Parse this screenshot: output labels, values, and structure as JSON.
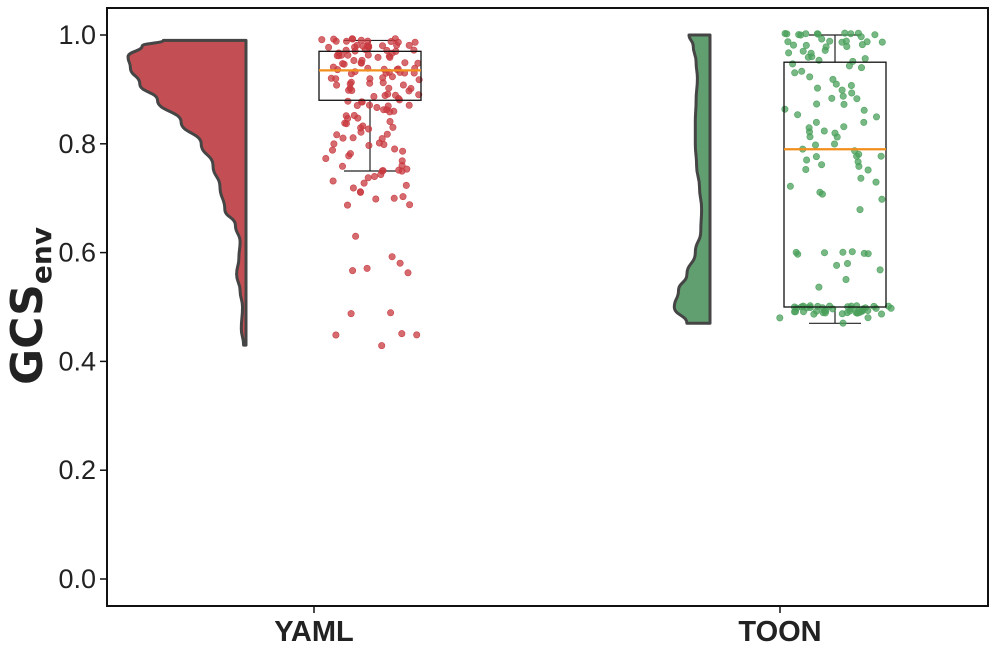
{
  "chart_data": {
    "type": "raincloud",
    "ylabel": "GCS",
    "ylabel_subscript": "env",
    "ylim": [
      -0.05,
      1.05
    ],
    "yticks": [
      "0.0",
      "0.2",
      "0.4",
      "0.6",
      "0.8",
      "1.0"
    ],
    "grid": false,
    "legend": "none",
    "categories": [
      "YAML",
      "TOON"
    ],
    "series": [
      {
        "category": "YAML",
        "color": "#c8393f",
        "violin_color": "#c0464b",
        "min": 0.43,
        "q1": 0.88,
        "median": 0.935,
        "q3": 0.97,
        "whisker_low": 0.75,
        "whisker_high": 0.99,
        "max": 0.99,
        "density": [
          [
            0.43,
            0.02
          ],
          [
            0.46,
            0.04
          ],
          [
            0.5,
            0.03
          ],
          [
            0.53,
            0.05
          ],
          [
            0.56,
            0.08
          ],
          [
            0.59,
            0.06
          ],
          [
            0.62,
            0.05
          ],
          [
            0.65,
            0.09
          ],
          [
            0.68,
            0.18
          ],
          [
            0.72,
            0.22
          ],
          [
            0.76,
            0.28
          ],
          [
            0.8,
            0.38
          ],
          [
            0.84,
            0.55
          ],
          [
            0.88,
            0.75
          ],
          [
            0.91,
            0.9
          ],
          [
            0.94,
            0.98
          ],
          [
            0.96,
            1.0
          ],
          [
            0.98,
            0.88
          ],
          [
            0.99,
            0.7
          ]
        ],
        "points": [
          0.43,
          0.45,
          0.45,
          0.45,
          0.49,
          0.49,
          0.56,
          0.57,
          0.57,
          0.58,
          0.59,
          0.63,
          0.69,
          0.69,
          0.7,
          0.7,
          0.7,
          0.71,
          0.71,
          0.72,
          0.72,
          0.73,
          0.73,
          0.74,
          0.74,
          0.74,
          0.75,
          0.75,
          0.75,
          0.75,
          0.75,
          0.76,
          0.76,
          0.77,
          0.77,
          0.78,
          0.78,
          0.79,
          0.79,
          0.79,
          0.8,
          0.8,
          0.8,
          0.8,
          0.81,
          0.81,
          0.81,
          0.82,
          0.82,
          0.82,
          0.83,
          0.83,
          0.83,
          0.83,
          0.84,
          0.84,
          0.84,
          0.85,
          0.85,
          0.85,
          0.85,
          0.86,
          0.86,
          0.86,
          0.86,
          0.87,
          0.87,
          0.87,
          0.87,
          0.87,
          0.88,
          0.88,
          0.88,
          0.88,
          0.88,
          0.89,
          0.89,
          0.89,
          0.89,
          0.89,
          0.9,
          0.9,
          0.9,
          0.9,
          0.9,
          0.9,
          0.91,
          0.91,
          0.91,
          0.91,
          0.91,
          0.91,
          0.92,
          0.92,
          0.92,
          0.92,
          0.92,
          0.92,
          0.93,
          0.93,
          0.93,
          0.93,
          0.93,
          0.93,
          0.93,
          0.94,
          0.94,
          0.94,
          0.94,
          0.94,
          0.94,
          0.94,
          0.95,
          0.95,
          0.95,
          0.95,
          0.95,
          0.95,
          0.95,
          0.95,
          0.96,
          0.96,
          0.96,
          0.96,
          0.96,
          0.96,
          0.96,
          0.96,
          0.97,
          0.97,
          0.97,
          0.97,
          0.97,
          0.97,
          0.97,
          0.97,
          0.98,
          0.98,
          0.98,
          0.98,
          0.98,
          0.98,
          0.98,
          0.98,
          0.98,
          0.98,
          0.99,
          0.99,
          0.99,
          0.99,
          0.99,
          0.99,
          0.99,
          0.99,
          0.99,
          0.99,
          0.99,
          0.99
        ]
      },
      {
        "category": "TOON",
        "color": "#4aa05b",
        "violin_color": "#589a68",
        "min": 0.47,
        "q1": 0.5,
        "median": 0.79,
        "q3": 0.95,
        "whisker_low": 0.47,
        "whisker_high": 1.0,
        "max": 1.0,
        "density": [
          [
            0.47,
            0.55
          ],
          [
            0.5,
            0.85
          ],
          [
            0.53,
            0.75
          ],
          [
            0.56,
            0.55
          ],
          [
            0.6,
            0.35
          ],
          [
            0.64,
            0.22
          ],
          [
            0.68,
            0.2
          ],
          [
            0.72,
            0.25
          ],
          [
            0.76,
            0.32
          ],
          [
            0.8,
            0.35
          ],
          [
            0.84,
            0.35
          ],
          [
            0.88,
            0.33
          ],
          [
            0.92,
            0.3
          ],
          [
            0.95,
            0.33
          ],
          [
            0.98,
            0.4
          ],
          [
            1.0,
            0.5
          ]
        ],
        "points": [
          0.47,
          0.48,
          0.48,
          0.49,
          0.49,
          0.49,
          0.49,
          0.49,
          0.49,
          0.49,
          0.49,
          0.49,
          0.49,
          0.49,
          0.49,
          0.49,
          0.49,
          0.49,
          0.49,
          0.49,
          0.49,
          0.49,
          0.49,
          0.49,
          0.5,
          0.5,
          0.5,
          0.5,
          0.5,
          0.5,
          0.5,
          0.5,
          0.5,
          0.5,
          0.5,
          0.5,
          0.5,
          0.5,
          0.5,
          0.5,
          0.5,
          0.5,
          0.5,
          0.5,
          0.5,
          0.54,
          0.55,
          0.57,
          0.58,
          0.58,
          0.6,
          0.6,
          0.6,
          0.6,
          0.6,
          0.6,
          0.6,
          0.68,
          0.7,
          0.71,
          0.71,
          0.72,
          0.73,
          0.74,
          0.75,
          0.75,
          0.76,
          0.76,
          0.77,
          0.77,
          0.78,
          0.78,
          0.78,
          0.78,
          0.79,
          0.79,
          0.8,
          0.8,
          0.81,
          0.81,
          0.82,
          0.82,
          0.82,
          0.83,
          0.83,
          0.84,
          0.84,
          0.85,
          0.85,
          0.86,
          0.86,
          0.87,
          0.87,
          0.88,
          0.88,
          0.89,
          0.89,
          0.9,
          0.9,
          0.91,
          0.91,
          0.92,
          0.92,
          0.93,
          0.93,
          0.94,
          0.94,
          0.95,
          0.95,
          0.95,
          0.96,
          0.96,
          0.96,
          0.97,
          0.97,
          0.97,
          0.97,
          0.98,
          0.98,
          0.98,
          0.98,
          0.98,
          0.99,
          0.99,
          0.99,
          0.99,
          0.99,
          0.99,
          0.99,
          1.0,
          1.0,
          1.0,
          1.0,
          1.0,
          1.0,
          1.0,
          1.0,
          1.0,
          1.0,
          1.0,
          1.0
        ]
      }
    ],
    "median_color": "#f28e1c"
  }
}
